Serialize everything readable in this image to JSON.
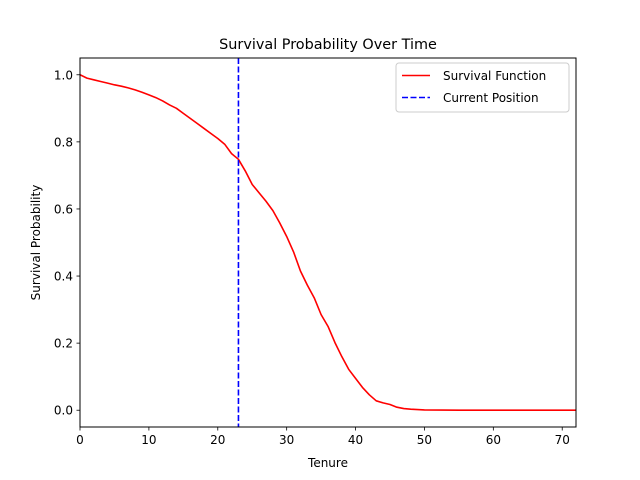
{
  "chart_data": {
    "type": "line",
    "title": "Survival Probability Over Time",
    "xlabel": "Tenure",
    "ylabel": "Survival Probability",
    "xlim": [
      0,
      72
    ],
    "ylim": [
      -0.05,
      1.05
    ],
    "xticks": [
      0,
      10,
      20,
      30,
      40,
      50,
      60,
      70
    ],
    "yticks": [
      0.0,
      0.2,
      0.4,
      0.6,
      0.8,
      1.0
    ],
    "xtick_labels": [
      "0",
      "10",
      "20",
      "30",
      "40",
      "50",
      "60",
      "70"
    ],
    "ytick_labels": [
      "0.0",
      "0.2",
      "0.4",
      "0.6",
      "0.8",
      "1.0"
    ],
    "grid": false,
    "legend_position": "top-right",
    "series": [
      {
        "name": "Survival Function",
        "color": "#ff0000",
        "style": "solid",
        "x": [
          0,
          1,
          2,
          3,
          4,
          5,
          6,
          7,
          8,
          9,
          10,
          11,
          12,
          13,
          14,
          15,
          16,
          17,
          18,
          19,
          20,
          21,
          22,
          23,
          24,
          25,
          26,
          27,
          28,
          29,
          30,
          31,
          32,
          33,
          34,
          35,
          36,
          37,
          38,
          39,
          40,
          41,
          42,
          43,
          44,
          45,
          46,
          47,
          48,
          49,
          50,
          55,
          60,
          65,
          70,
          72
        ],
        "y": [
          1.0,
          0.99,
          0.985,
          0.98,
          0.975,
          0.97,
          0.966,
          0.961,
          0.955,
          0.948,
          0.94,
          0.932,
          0.922,
          0.91,
          0.9,
          0.885,
          0.87,
          0.855,
          0.84,
          0.825,
          0.81,
          0.793,
          0.765,
          0.748,
          0.713,
          0.673,
          0.648,
          0.623,
          0.595,
          0.558,
          0.518,
          0.472,
          0.415,
          0.373,
          0.335,
          0.285,
          0.25,
          0.202,
          0.16,
          0.122,
          0.095,
          0.068,
          0.046,
          0.028,
          0.022,
          0.017,
          0.009,
          0.005,
          0.003,
          0.002,
          0.001,
          0.0,
          0.0,
          0.0,
          0.0,
          0.0
        ]
      },
      {
        "name": "Current Position",
        "color": "#0000ff",
        "style": "dashed",
        "vline_x": 23
      }
    ]
  }
}
